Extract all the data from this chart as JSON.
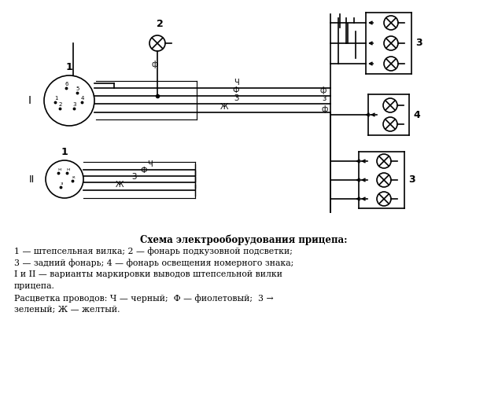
{
  "bg_color": "#ffffff",
  "line_color": "#000000",
  "lw": 1.2,
  "title": "Схема электрооборудования прицепа:",
  "caption_lines": [
    "1 — штепсельная вилка; 2 — фонарь подкузовной подсветки;",
    "3 — задний фонарь; 4 — фонарь освещения номерного знака;",
    "I и II — варианты маркировки выводов штепсельной вилки",
    "прицепа.",
    "Расцветка проводов: Ч — черный;  Ф — фиолетовый;  3 →",
    "зеленый; Ж — желтый."
  ]
}
